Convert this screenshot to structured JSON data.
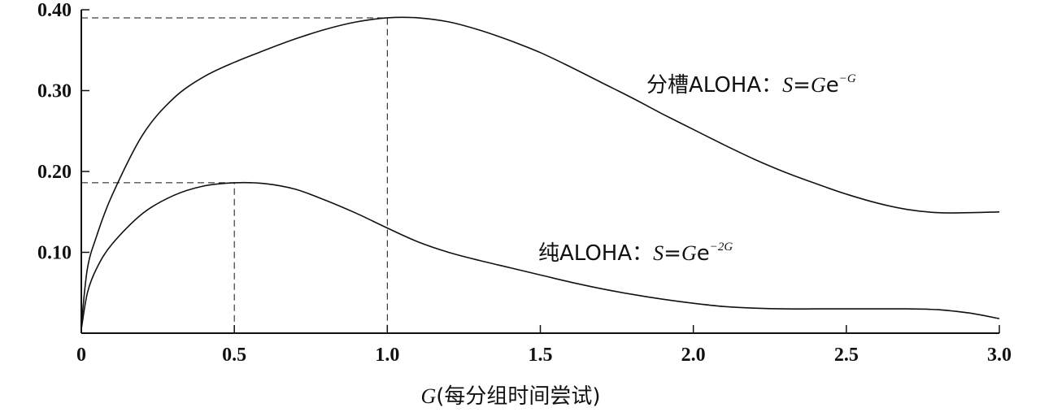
{
  "chart_data": {
    "type": "line",
    "title": "",
    "xlabel": "(每分组时间尝试)",
    "xlabel_var": "G",
    "ylabel": "",
    "xlim": [
      0,
      3.0
    ],
    "ylim": [
      0,
      0.4
    ],
    "x_ticks": [
      0,
      0.5,
      1.0,
      1.5,
      2.0,
      2.5,
      3.0
    ],
    "x_tick_labels": [
      "0",
      "0.5",
      "1.0",
      "1.5",
      "2.0",
      "2.5",
      "3.0"
    ],
    "y_ticks": [
      0.1,
      0.2,
      0.3,
      0.4
    ],
    "y_tick_labels": [
      "0.10",
      "0.20",
      "0.30",
      "0.40"
    ],
    "grid": false,
    "series": [
      {
        "name": "分槽ALOHA",
        "label_prefix": "分槽ALOHA：",
        "label_S": "S",
        "label_eq": "=",
        "label_G": "G",
        "label_e": "e",
        "label_exp": "−G",
        "x": [
          0,
          0.02,
          0.05,
          0.1,
          0.2,
          0.3,
          0.4,
          0.5,
          0.6,
          0.7,
          0.8,
          0.9,
          1.0,
          1.1,
          1.2,
          1.3,
          1.4,
          1.5,
          1.6,
          1.7,
          1.8,
          1.9,
          2.0,
          2.1,
          2.2,
          2.3,
          2.4,
          2.5,
          2.6,
          2.7,
          2.8,
          2.9,
          3.0
        ],
        "y": [
          0.01,
          0.08,
          0.12,
          0.17,
          0.245,
          0.29,
          0.317,
          0.335,
          0.35,
          0.364,
          0.376,
          0.385,
          0.39,
          0.39,
          0.385,
          0.375,
          0.362,
          0.347,
          0.329,
          0.31,
          0.291,
          0.271,
          0.252,
          0.233,
          0.215,
          0.199,
          0.185,
          0.172,
          0.161,
          0.153,
          0.149,
          0.149,
          0.15
        ]
      },
      {
        "name": "纯ALOHA",
        "label_prefix": "纯ALOHA：",
        "label_S": "S",
        "label_eq": "=",
        "label_G": "G",
        "label_e": "e",
        "label_exp": "−2G",
        "x": [
          0,
          0.02,
          0.05,
          0.1,
          0.2,
          0.3,
          0.4,
          0.5,
          0.6,
          0.7,
          0.8,
          0.9,
          1.0,
          1.1,
          1.2,
          1.3,
          1.4,
          1.5,
          1.6,
          1.7,
          1.8,
          1.9,
          2.0,
          2.1,
          2.2,
          2.3,
          2.4,
          2.5,
          2.6,
          2.7,
          2.8,
          2.9,
          3.0
        ],
        "y": [
          0.005,
          0.05,
          0.08,
          0.11,
          0.148,
          0.17,
          0.182,
          0.186,
          0.185,
          0.178,
          0.164,
          0.148,
          0.13,
          0.113,
          0.1,
          0.09,
          0.081,
          0.072,
          0.063,
          0.055,
          0.048,
          0.042,
          0.037,
          0.033,
          0.031,
          0.03,
          0.03,
          0.03,
          0.03,
          0.03,
          0.029,
          0.025,
          0.018
        ]
      }
    ],
    "reference_lines": [
      {
        "x": 1.0,
        "y": 0.39
      },
      {
        "x": 0.5,
        "y": 0.186
      }
    ]
  }
}
